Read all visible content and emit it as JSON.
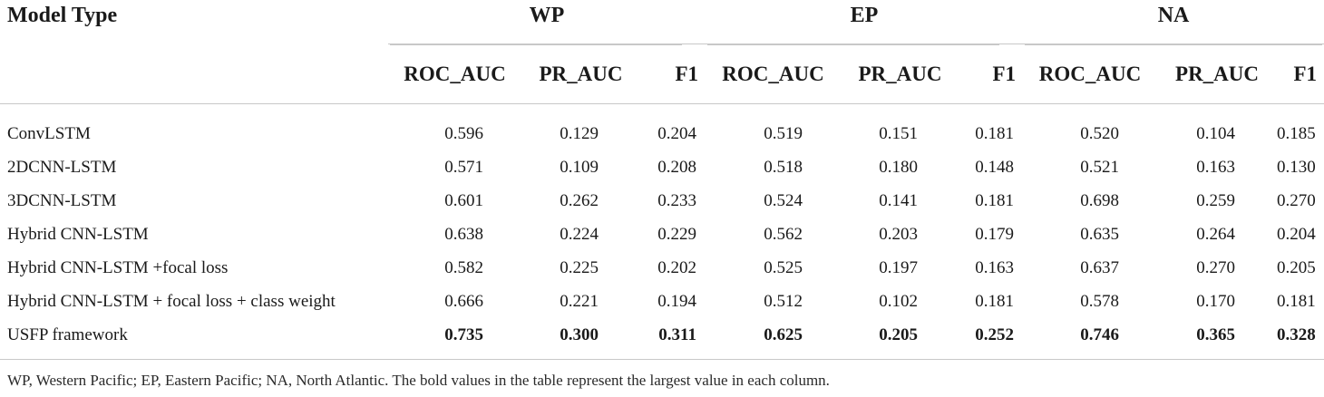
{
  "table": {
    "model_header": "Model Type",
    "groups": [
      "WP",
      "EP",
      "NA"
    ],
    "metrics": [
      "ROC_AUC",
      "PR_AUC",
      "F1"
    ],
    "rows": [
      {
        "name": "ConvLSTM",
        "values": [
          "0.596",
          "0.129",
          "0.204",
          "0.519",
          "0.151",
          "0.181",
          "0.520",
          "0.104",
          "0.185"
        ],
        "bold": false
      },
      {
        "name": "2DCNN-LSTM",
        "values": [
          "0.571",
          "0.109",
          "0.208",
          "0.518",
          "0.180",
          "0.148",
          "0.521",
          "0.163",
          "0.130"
        ],
        "bold": false
      },
      {
        "name": "3DCNN-LSTM",
        "values": [
          "0.601",
          "0.262",
          "0.233",
          "0.524",
          "0.141",
          "0.181",
          "0.698",
          "0.259",
          "0.270"
        ],
        "bold": false
      },
      {
        "name": "Hybrid CNN-LSTM",
        "values": [
          "0.638",
          "0.224",
          "0.229",
          "0.562",
          "0.203",
          "0.179",
          "0.635",
          "0.264",
          "0.204"
        ],
        "bold": false
      },
      {
        "name": "Hybrid CNN-LSTM +focal loss",
        "values": [
          "0.582",
          "0.225",
          "0.202",
          "0.525",
          "0.197",
          "0.163",
          "0.637",
          "0.270",
          "0.205"
        ],
        "bold": false
      },
      {
        "name": "Hybrid CNN-LSTM + focal loss + class weight",
        "values": [
          "0.666",
          "0.221",
          "0.194",
          "0.512",
          "0.102",
          "0.181",
          "0.578",
          "0.170",
          "0.181"
        ],
        "bold": false
      },
      {
        "name": "USFP framework",
        "values": [
          "0.735",
          "0.300",
          "0.311",
          "0.625",
          "0.205",
          "0.252",
          "0.746",
          "0.365",
          "0.328"
        ],
        "bold": true
      }
    ]
  },
  "footnote": "WP, Western Pacific; EP, Eastern Pacific; NA, North Atlantic. The bold values in the table represent the largest value in each column."
}
